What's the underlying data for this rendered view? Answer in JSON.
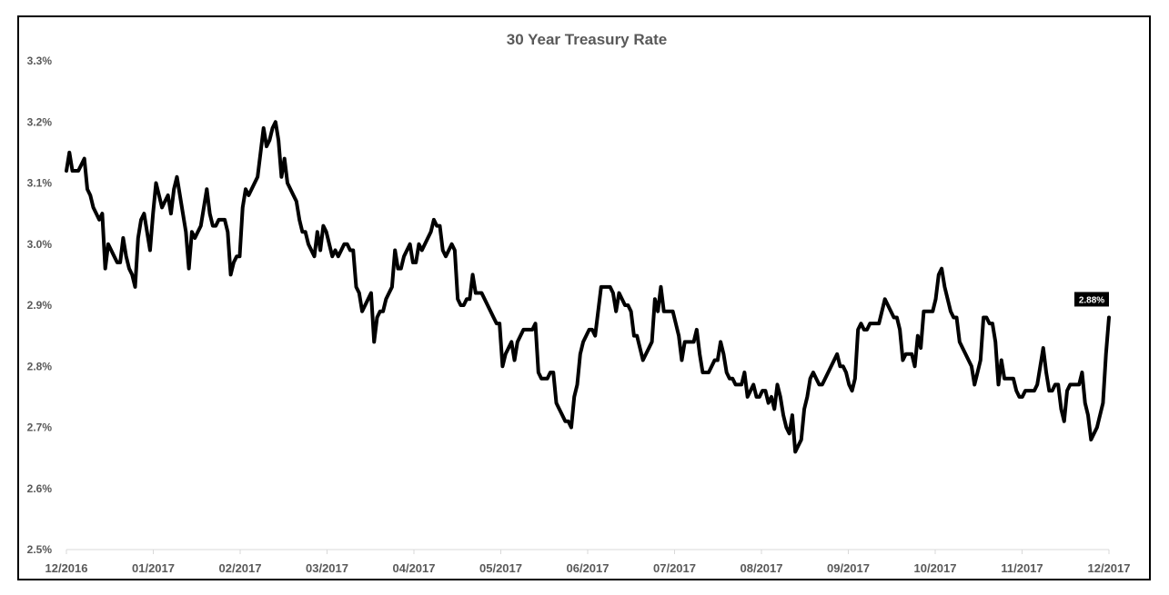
{
  "chart_data": {
    "type": "line",
    "title": "30 Year Treasury Rate",
    "xlabel": "",
    "ylabel": "",
    "ylim": [
      2.5,
      3.3
    ],
    "y_ticks": [
      "2.5%",
      "2.6%",
      "2.7%",
      "2.8%",
      "2.9%",
      "3.0%",
      "3.1%",
      "3.2%",
      "3.3%"
    ],
    "x_ticks": [
      "12/2016",
      "01/2017",
      "02/2017",
      "03/2017",
      "04/2017",
      "05/2017",
      "06/2017",
      "07/2017",
      "08/2017",
      "09/2017",
      "10/2017",
      "11/2017",
      "12/2017"
    ],
    "x_range": [
      "12/2016",
      "12/2017"
    ],
    "grid": false,
    "legend": "none",
    "line_color": "#000000",
    "callout": {
      "label": "2.88%",
      "background": "#000000",
      "text_color": "#ffffff"
    },
    "series": [
      {
        "values": [
          3.12,
          3.15,
          3.12,
          3.12,
          3.12,
          3.13,
          3.14,
          3.09,
          3.08,
          3.06,
          3.05,
          3.04,
          3.05,
          2.96,
          3.0,
          2.99,
          2.98,
          2.97,
          2.97,
          3.01,
          2.98,
          2.96,
          2.95,
          2.93,
          3.01,
          3.04,
          3.05,
          3.02,
          2.99,
          3.05,
          3.1,
          3.08,
          3.06,
          3.07,
          3.08,
          3.05,
          3.09,
          3.11,
          3.08,
          3.05,
          3.02,
          2.96,
          3.02,
          3.01,
          3.02,
          3.03,
          3.06,
          3.09,
          3.05,
          3.03,
          3.03,
          3.04,
          3.04,
          3.04,
          3.02,
          2.95,
          2.97,
          2.98,
          2.98,
          3.06,
          3.09,
          3.08,
          3.09,
          3.1,
          3.11,
          3.15,
          3.19,
          3.16,
          3.17,
          3.19,
          3.2,
          3.17,
          3.11,
          3.14,
          3.1,
          3.09,
          3.08,
          3.07,
          3.04,
          3.02,
          3.02,
          3.0,
          2.99,
          2.98,
          3.02,
          2.99,
          3.03,
          3.02,
          3.0,
          2.98,
          2.99,
          2.98,
          2.99,
          3.0,
          3.0,
          2.99,
          2.99,
          2.93,
          2.92,
          2.89,
          2.9,
          2.91,
          2.92,
          2.84,
          2.88,
          2.89,
          2.89,
          2.91,
          2.92,
          2.93,
          2.99,
          2.96,
          2.96,
          2.98,
          2.99,
          3.0,
          2.97,
          2.97,
          3.0,
          2.99,
          3.0,
          3.01,
          3.02,
          3.04,
          3.03,
          3.03,
          2.99,
          2.98,
          2.99,
          3.0,
          2.99,
          2.91,
          2.9,
          2.9,
          2.91,
          2.91,
          2.95,
          2.92,
          2.92,
          2.92,
          2.91,
          2.9,
          2.89,
          2.88,
          2.87,
          2.87,
          2.8,
          2.82,
          2.83,
          2.84,
          2.81,
          2.84,
          2.85,
          2.86,
          2.86,
          2.86,
          2.86,
          2.87,
          2.79,
          2.78,
          2.78,
          2.78,
          2.79,
          2.79,
          2.74,
          2.73,
          2.72,
          2.71,
          2.71,
          2.7,
          2.75,
          2.77,
          2.82,
          2.84,
          2.85,
          2.86,
          2.86,
          2.85,
          2.89,
          2.93,
          2.93,
          2.93,
          2.93,
          2.92,
          2.89,
          2.92,
          2.91,
          2.9,
          2.9,
          2.89,
          2.85,
          2.85,
          2.83,
          2.81,
          2.82,
          2.83,
          2.84,
          2.91,
          2.89,
          2.93,
          2.89,
          2.89,
          2.89,
          2.89,
          2.87,
          2.85,
          2.81,
          2.84,
          2.84,
          2.84,
          2.84,
          2.86,
          2.82,
          2.79,
          2.79,
          2.79,
          2.8,
          2.81,
          2.81,
          2.84,
          2.82,
          2.79,
          2.78,
          2.78,
          2.77,
          2.77,
          2.77,
          2.79,
          2.75,
          2.76,
          2.77,
          2.75,
          2.75,
          2.76,
          2.76,
          2.74,
          2.75,
          2.73,
          2.77,
          2.75,
          2.72,
          2.7,
          2.69,
          2.72,
          2.66,
          2.67,
          2.68,
          2.73,
          2.75,
          2.78,
          2.79,
          2.78,
          2.77,
          2.77,
          2.78,
          2.79,
          2.8,
          2.81,
          2.82,
          2.8,
          2.8,
          2.79,
          2.77,
          2.76,
          2.78,
          2.86,
          2.87,
          2.86,
          2.86,
          2.87,
          2.87,
          2.87,
          2.87,
          2.89,
          2.91,
          2.9,
          2.89,
          2.88,
          2.88,
          2.86,
          2.81,
          2.82,
          2.82,
          2.82,
          2.8,
          2.85,
          2.83,
          2.89,
          2.89,
          2.89,
          2.89,
          2.91,
          2.95,
          2.96,
          2.93,
          2.91,
          2.89,
          2.88,
          2.88,
          2.84,
          2.83,
          2.82,
          2.81,
          2.8,
          2.77,
          2.79,
          2.81,
          2.88,
          2.88,
          2.87,
          2.87,
          2.84,
          2.77,
          2.81,
          2.78,
          2.78,
          2.78,
          2.78,
          2.76,
          2.75,
          2.75,
          2.76,
          2.76,
          2.76,
          2.76,
          2.77,
          2.8,
          2.83,
          2.79,
          2.76,
          2.76,
          2.77,
          2.77,
          2.73,
          2.71,
          2.76,
          2.77,
          2.77,
          2.77,
          2.77,
          2.79,
          2.74,
          2.72,
          2.68,
          2.69,
          2.7,
          2.72,
          2.74,
          2.82,
          2.88
        ]
      }
    ]
  }
}
